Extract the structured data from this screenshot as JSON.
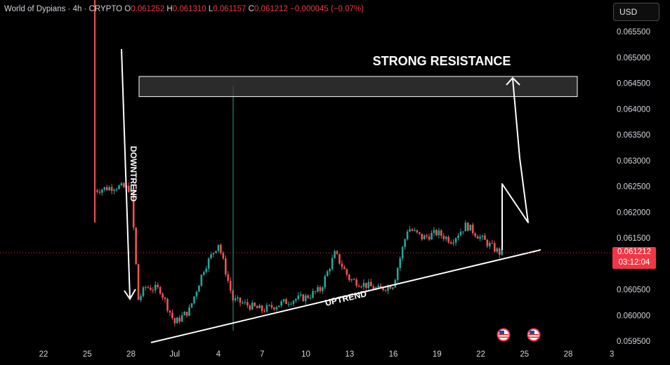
{
  "header": {
    "symbol": "World of Dypians · 4h · CRYPTO",
    "o_label": "O",
    "o_value": "0.061252",
    "h_label": "H",
    "h_value": "0.061310",
    "l_label": "L",
    "l_value": "0.061157",
    "c_label": "C",
    "c_value": "0.061212",
    "change": "−0.000045 (−0.07%)"
  },
  "currency_button": "USD",
  "last_price": {
    "value": "0.061212",
    "countdown": "03:12:04",
    "color": "#f23645"
  },
  "colors": {
    "up": "#26a69a",
    "down": "#ef5350",
    "annotation": "#ffffff",
    "background": "#000000"
  },
  "chart_data": {
    "type": "candlestick",
    "title": "",
    "xlabel": "",
    "ylabel": "",
    "x_ticks": [
      "22",
      "25",
      "28",
      "Jul",
      "4",
      "7",
      "10",
      "13",
      "16",
      "19",
      "22",
      "25",
      "28",
      "3"
    ],
    "y_ticks": [
      "0.065500",
      "0.065000",
      "0.064500",
      "0.064000",
      "0.063500",
      "0.063000",
      "0.062500",
      "0.062000",
      "0.061500",
      "0.060500",
      "0.060000",
      "0.059500"
    ],
    "ylim": [
      0.05943,
      0.0658
    ],
    "grid": false,
    "last_price": 0.061212,
    "annotations": [
      {
        "text": "STRONG RESISTANCE",
        "kind": "zone",
        "price_range": [
          0.06424,
          0.06463
        ]
      },
      {
        "text": "DOWNTREND",
        "kind": "arrow"
      },
      {
        "text": "UPTREND",
        "kind": "trendline"
      }
    ],
    "event_icons": 2,
    "price_path": [
      [
        "25",
        0.0624
      ],
      [
        "26",
        0.06245
      ],
      [
        "27",
        0.0625
      ],
      [
        "28",
        0.06245
      ],
      [
        "28.5",
        0.0603
      ],
      [
        "29",
        0.06055
      ],
      [
        "30",
        0.0605
      ],
      [
        "Jul",
        0.05985
      ],
      [
        "2",
        0.0601
      ],
      [
        "3",
        0.0609
      ],
      [
        "4",
        0.0614
      ],
      [
        "5",
        0.0603
      ],
      [
        "6",
        0.0602
      ],
      [
        "7",
        0.0601
      ],
      [
        "8",
        0.0602
      ],
      [
        "9",
        0.0603
      ],
      [
        "10",
        0.06035
      ],
      [
        "11",
        0.0605
      ],
      [
        "12",
        0.0612
      ],
      [
        "13",
        0.0607
      ],
      [
        "14",
        0.0606
      ],
      [
        "15",
        0.0605
      ],
      [
        "16",
        0.0606
      ],
      [
        "17",
        0.0617
      ],
      [
        "18",
        0.0615
      ],
      [
        "19",
        0.0616
      ],
      [
        "20",
        0.06145
      ],
      [
        "21",
        0.06175
      ],
      [
        "22",
        0.0615
      ],
      [
        "23",
        0.06121
      ]
    ]
  }
}
